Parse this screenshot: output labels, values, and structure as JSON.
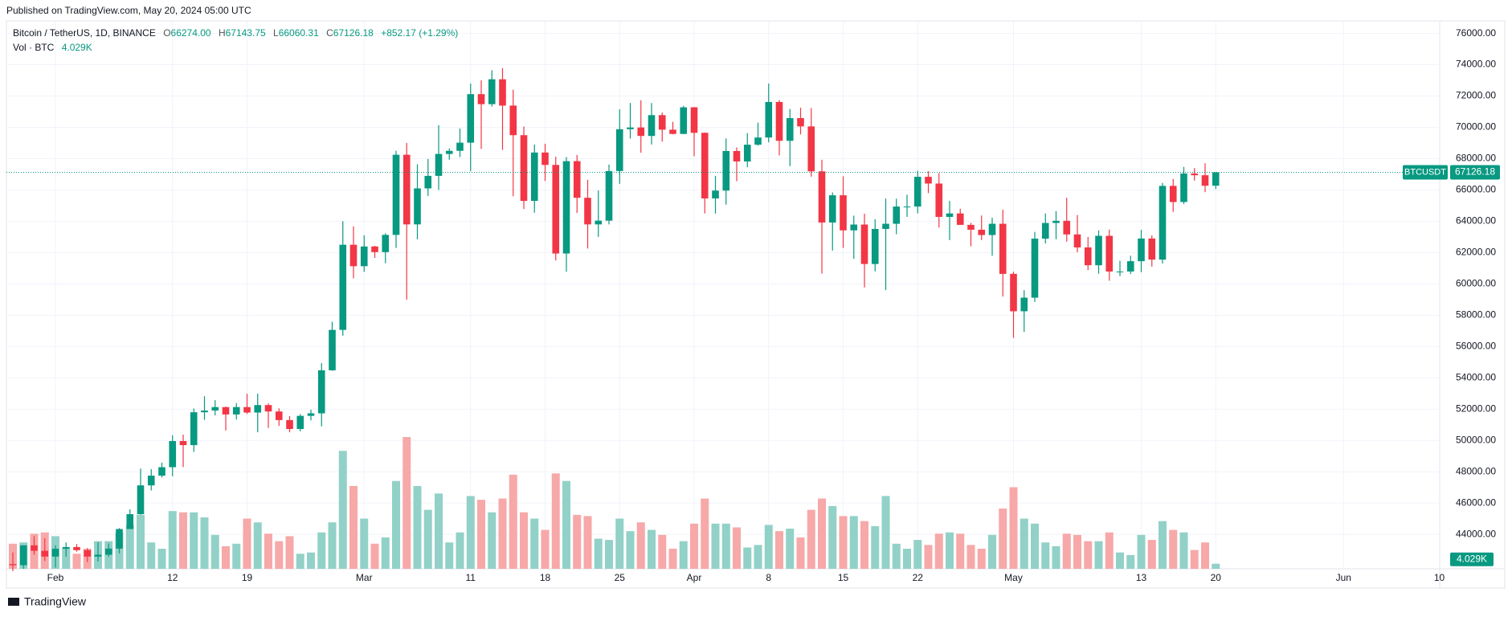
{
  "header": {
    "published": "Published on TradingView.com, May 20, 2024 05:00 UTC",
    "brand": "TradingView"
  },
  "chart_data": {
    "type": "candlestick",
    "legend": {
      "symbol": "Bitcoin / TetherUS, 1D, BINANCE",
      "open_label": "O",
      "open": "66274.00",
      "high_label": "H",
      "high": "67143.75",
      "low_label": "L",
      "low": "66060.31",
      "close_label": "C",
      "close": "67126.18",
      "change": "+852.17 (+1.29%)",
      "volume_name": "Vol · BTC",
      "volume": "4.029K"
    },
    "ticker": "BTCUSDT",
    "last_price_label": "67126.18",
    "last_volume_label": "4.029K",
    "up_color": "#089981",
    "down_color": "#f23645",
    "up_volume_color": "#92d1c7",
    "down_volume_color": "#f7a8a8",
    "grid": true,
    "x": [
      "2024-01-28",
      "2024-01-29",
      "2024-01-30",
      "2024-01-31",
      "2024-02-01",
      "2024-02-02",
      "2024-02-03",
      "2024-02-04",
      "2024-02-05",
      "2024-02-06",
      "2024-02-07",
      "2024-02-08",
      "2024-02-09",
      "2024-02-10",
      "2024-02-11",
      "2024-02-12",
      "2024-02-13",
      "2024-02-14",
      "2024-02-15",
      "2024-02-16",
      "2024-02-17",
      "2024-02-18",
      "2024-02-19",
      "2024-02-20",
      "2024-02-21",
      "2024-02-22",
      "2024-02-23",
      "2024-02-24",
      "2024-02-25",
      "2024-02-26",
      "2024-02-27",
      "2024-02-28",
      "2024-02-29",
      "2024-03-01",
      "2024-03-02",
      "2024-03-03",
      "2024-03-04",
      "2024-03-05",
      "2024-03-06",
      "2024-03-07",
      "2024-03-08",
      "2024-03-09",
      "2024-03-10",
      "2024-03-11",
      "2024-03-12",
      "2024-03-13",
      "2024-03-14",
      "2024-03-15",
      "2024-03-16",
      "2024-03-17",
      "2024-03-18",
      "2024-03-19",
      "2024-03-20",
      "2024-03-21",
      "2024-03-22",
      "2024-03-23",
      "2024-03-24",
      "2024-03-25",
      "2024-03-26",
      "2024-03-27",
      "2024-03-28",
      "2024-03-29",
      "2024-03-30",
      "2024-03-31",
      "2024-04-01",
      "2024-04-02",
      "2024-04-03",
      "2024-04-04",
      "2024-04-05",
      "2024-04-06",
      "2024-04-07",
      "2024-04-08",
      "2024-04-09",
      "2024-04-10",
      "2024-04-11",
      "2024-04-12",
      "2024-04-13",
      "2024-04-14",
      "2024-04-15",
      "2024-04-16",
      "2024-04-17",
      "2024-04-18",
      "2024-04-19",
      "2024-04-20",
      "2024-04-21",
      "2024-04-22",
      "2024-04-23",
      "2024-04-24",
      "2024-04-25",
      "2024-04-26",
      "2024-04-27",
      "2024-04-28",
      "2024-04-29",
      "2024-04-30",
      "2024-05-01",
      "2024-05-02",
      "2024-05-03",
      "2024-05-04",
      "2024-05-05",
      "2024-05-06",
      "2024-05-07",
      "2024-05-08",
      "2024-05-09",
      "2024-05-10",
      "2024-05-11",
      "2024-05-12",
      "2024-05-13",
      "2024-05-14",
      "2024-05-15",
      "2024-05-16",
      "2024-05-17",
      "2024-05-18",
      "2024-05-19",
      "2024-05-20"
    ],
    "open": [
      42100,
      42030,
      43300,
      42950,
      42580,
      43080,
      43190,
      42990,
      42580,
      42700,
      43090,
      44340,
      45290,
      47130,
      47750,
      48290,
      49960,
      49700,
      51800,
      51910,
      52130,
      51660,
      52130,
      51780,
      52260,
      51850,
      51300,
      50730,
      51570,
      51730,
      54480,
      57060,
      62500,
      61130,
      62390,
      62030,
      63130,
      68250,
      63800,
      66100,
      66900,
      68300,
      68500,
      69020,
      72120,
      71480,
      73070,
      71390,
      69500,
      65300,
      68390,
      67600,
      61940,
      67840,
      65500,
      63800,
      64040,
      67210,
      69880,
      69990,
      69450,
      70780,
      69850,
      69580,
      71280,
      69650,
      65460,
      65960,
      68490,
      67820,
      68890,
      69350,
      71620,
      69140,
      70590,
      70060,
      67190,
      63920,
      65660,
      63420,
      63790,
      61270,
      63510,
      63840,
      64940,
      64940,
      66840,
      66410,
      64280,
      64500,
      63770,
      63460,
      63120,
      63840,
      60640,
      58250,
      59120,
      62890,
      63890,
      64030,
      63160,
      62330,
      61190,
      63070,
      60790,
      60790,
      61450,
      62900,
      61550,
      66260,
      65230,
      67050,
      66940,
      66274
    ],
    "high": [
      42850,
      43300,
      43880,
      43750,
      43300,
      43480,
      43380,
      43120,
      43500,
      43420,
      44400,
      45600,
      48200,
      48170,
      48580,
      50330,
      50370,
      52040,
      52820,
      52570,
      52160,
      52380,
      52980,
      52990,
      52370,
      52050,
      51550,
      51680,
      51960,
      54940,
      57580,
      64000,
      63680,
      63110,
      62430,
      63230,
      68500,
      69000,
      67640,
      67980,
      70140,
      68650,
      69920,
      72800,
      73000,
      73650,
      73780,
      72400,
      70050,
      68900,
      68950,
      68120,
      68100,
      68240,
      66650,
      65970,
      67620,
      71150,
      71560,
      71730,
      71550,
      70940,
      70350,
      71370,
      71300,
      69670,
      66900,
      69290,
      68720,
      69630,
      70300,
      72800,
      71740,
      71170,
      71250,
      71230,
      67930,
      65840,
      66870,
      64360,
      64480,
      64130,
      65450,
      65440,
      65700,
      67230,
      67200,
      67080,
      65300,
      64800,
      63900,
      64370,
      64230,
      64740,
      60780,
      59600,
      63320,
      64500,
      64650,
      65500,
      64400,
      63000,
      63420,
      63470,
      61480,
      61800,
      63450,
      63100,
      66450,
      66700,
      67470,
      67400,
      67700,
      67143.75
    ],
    "low": [
      41650,
      41800,
      42700,
      42300,
      41880,
      42580,
      42890,
      42220,
      42260,
      42570,
      42780,
      44340,
      45250,
      46800,
      47630,
      47710,
      48300,
      49270,
      51320,
      51600,
      50630,
      51330,
      51690,
      50520,
      50800,
      50930,
      50520,
      50580,
      51280,
      50900,
      54450,
      56690,
      60360,
      60770,
      61660,
      61320,
      62300,
      59000,
      62850,
      65620,
      66000,
      67930,
      68100,
      67200,
      68620,
      71330,
      68560,
      65600,
      64780,
      64550,
      66570,
      61500,
      60780,
      64530,
      62260,
      63000,
      63800,
      66390,
      69280,
      68380,
      68900,
      69080,
      69550,
      69560,
      68150,
      64500,
      64490,
      65060,
      66560,
      67450,
      68830,
      69040,
      68210,
      67520,
      69550,
      66850,
      60660,
      62130,
      62300,
      61600,
      59770,
      60800,
      59600,
      63170,
      64280,
      64500,
      65800,
      63600,
      62800,
      63780,
      62400,
      62800,
      61800,
      59190,
      56550,
      56940,
      58850,
      62580,
      62850,
      62700,
      62020,
      60880,
      60650,
      60200,
      60500,
      60630,
      60750,
      61100,
      61300,
      64600,
      65100,
      66600,
      65860,
      66060.31
    ],
    "close": [
      42030,
      43300,
      42950,
      42580,
      43080,
      43190,
      42990,
      42580,
      42700,
      43090,
      44340,
      45290,
      47130,
      47750,
      48290,
      49960,
      49700,
      51800,
      51910,
      52130,
      51660,
      52130,
      51780,
      52260,
      51850,
      51300,
      50730,
      51570,
      51730,
      54480,
      57060,
      62500,
      61130,
      62390,
      62030,
      63130,
      68250,
      63800,
      66100,
      66900,
      68300,
      68500,
      69020,
      72120,
      71480,
      73070,
      71390,
      69500,
      65300,
      68390,
      67600,
      61940,
      67840,
      65500,
      63800,
      64040,
      67210,
      69880,
      69990,
      69450,
      70780,
      69850,
      69580,
      71280,
      69650,
      65460,
      65960,
      68490,
      67820,
      68890,
      69350,
      71620,
      69140,
      70590,
      70060,
      67190,
      63920,
      65660,
      63420,
      63790,
      61270,
      63510,
      63840,
      64940,
      64940,
      66840,
      66410,
      64280,
      64500,
      63770,
      63460,
      63120,
      63840,
      60640,
      58250,
      59120,
      62890,
      63890,
      64030,
      63160,
      62330,
      61190,
      63070,
      60790,
      60790,
      61450,
      62900,
      61550,
      66260,
      65230,
      67050,
      66940,
      66270,
      67126.18
    ],
    "volume": [
      20,
      21,
      28,
      29,
      26,
      17,
      12,
      16,
      22,
      22,
      29,
      35,
      43,
      21,
      16,
      46,
      45,
      45,
      41,
      27,
      18,
      20,
      40,
      37,
      28,
      22,
      26,
      12,
      13,
      29,
      37,
      94,
      66,
      40,
      20,
      25,
      70,
      105,
      66,
      47,
      60,
      21,
      29,
      58,
      55,
      45,
      56,
      75,
      45,
      40,
      31,
      76,
      70,
      43,
      42,
      24,
      23,
      40,
      30,
      37,
      31,
      27,
      16,
      22,
      36,
      56,
      36,
      36,
      33,
      17,
      19,
      35,
      30,
      32,
      25,
      47,
      56,
      50,
      42,
      42,
      38,
      34,
      58,
      20,
      16,
      23,
      19,
      28,
      29,
      28,
      19,
      16,
      27,
      48,
      65,
      40,
      36,
      21,
      18,
      28,
      27,
      22,
      22,
      29,
      13,
      11,
      27,
      23,
      38,
      31,
      29,
      15,
      21,
      4.029
    ],
    "ylim": [
      41800,
      76800
    ],
    "yticks": [
      {
        "value": 44000,
        "label": "44000.00"
      },
      {
        "value": 46000,
        "label": "46000.00"
      },
      {
        "value": 48000,
        "label": "48000.00"
      },
      {
        "value": 50000,
        "label": "50000.00"
      },
      {
        "value": 52000,
        "label": "52000.00"
      },
      {
        "value": 54000,
        "label": "54000.00"
      },
      {
        "value": 56000,
        "label": "56000.00"
      },
      {
        "value": 58000,
        "label": "58000.00"
      },
      {
        "value": 60000,
        "label": "60000.00"
      },
      {
        "value": 62000,
        "label": "62000.00"
      },
      {
        "value": 64000,
        "label": "64000.00"
      },
      {
        "value": 66000,
        "label": "66000.00"
      },
      {
        "value": 68000,
        "label": "68000.00"
      },
      {
        "value": 70000,
        "label": "70000.00"
      },
      {
        "value": 72000,
        "label": "72000.00"
      },
      {
        "value": 74000,
        "label": "74000.00"
      },
      {
        "value": 76000,
        "label": "76000.00"
      }
    ],
    "xticks": [
      {
        "value": "2024-02-01",
        "label": "Feb"
      },
      {
        "value": "2024-02-12",
        "label": "12"
      },
      {
        "value": "2024-02-19",
        "label": "19"
      },
      {
        "value": "2024-03-01",
        "label": "Mar"
      },
      {
        "value": "2024-03-11",
        "label": "11"
      },
      {
        "value": "2024-03-18",
        "label": "18"
      },
      {
        "value": "2024-03-25",
        "label": "25"
      },
      {
        "value": "2024-04-01",
        "label": "Apr"
      },
      {
        "value": "2024-04-08",
        "label": "8"
      },
      {
        "value": "2024-04-15",
        "label": "15"
      },
      {
        "value": "2024-04-22",
        "label": "22"
      },
      {
        "value": "2024-05-01",
        "label": "May"
      },
      {
        "value": "2024-05-13",
        "label": "13"
      },
      {
        "value": "2024-05-20",
        "label": "20"
      },
      {
        "value": "2024-06-01",
        "label": "Jun"
      },
      {
        "value": "2024-06-10",
        "label": "10"
      }
    ]
  }
}
